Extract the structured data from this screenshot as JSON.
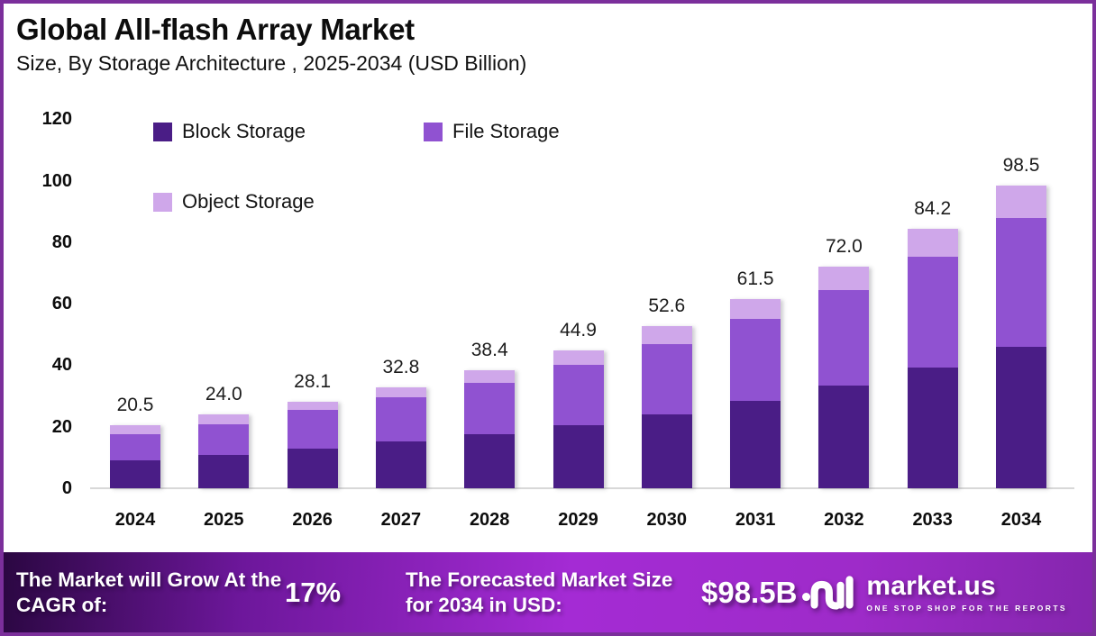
{
  "title": "Global All-flash Array Market",
  "subtitle": "Size, By Storage Architecture , 2025-2034 (USD Billion)",
  "chart_data": {
    "type": "bar",
    "stacked": true,
    "title": "Global All-flash Array Market Size, By Storage Architecture, 2025-2034 (USD Billion)",
    "categories": [
      "2024",
      "2025",
      "2026",
      "2027",
      "2028",
      "2029",
      "2030",
      "2031",
      "2032",
      "2033",
      "2034"
    ],
    "series": [
      {
        "name": "Block Storage",
        "color": "#4A1D86",
        "values": [
          9.1,
          10.8,
          13.0,
          15.1,
          17.7,
          20.5,
          24.0,
          28.4,
          33.4,
          39.2,
          46.0
        ]
      },
      {
        "name": "File Storage",
        "color": "#9052D1",
        "values": [
          8.5,
          10.0,
          12.4,
          14.5,
          16.5,
          19.7,
          22.8,
          26.7,
          31.0,
          36.0,
          42.0
        ]
      },
      {
        "name": "Object Storage",
        "color": "#CFA7EA",
        "values": [
          2.9,
          3.2,
          2.7,
          3.2,
          4.2,
          4.7,
          5.8,
          6.4,
          7.6,
          9.0,
          10.5
        ]
      }
    ],
    "totals": [
      20.5,
      24.0,
      28.1,
      32.8,
      38.4,
      44.9,
      52.6,
      61.5,
      72.0,
      84.2,
      98.5
    ],
    "total_labels": [
      "20.5",
      "24.0",
      "28.1",
      "32.8",
      "38.4",
      "44.9",
      "52.6",
      "61.5",
      "72.0",
      "84.2",
      "98.5"
    ],
    "ylim": [
      0,
      120
    ],
    "yticks": [
      0,
      20,
      40,
      60,
      80,
      100,
      120
    ],
    "grid": false,
    "legend_position": "top-left"
  },
  "legend": {
    "items": [
      {
        "label": "Block Storage",
        "color": "#4A1D86"
      },
      {
        "label": "File Storage",
        "color": "#9052D1"
      },
      {
        "label": "Object Storage",
        "color": "#CFA7EA"
      }
    ]
  },
  "banner": {
    "cagr_label": "The Market will Grow At the CAGR of:",
    "cagr_value": "17%",
    "forecast_label": "The Forecasted Market Size for 2034 in USD:",
    "forecast_value": "$98.5B",
    "logo_name": "market.us",
    "logo_tagline": "ONE STOP SHOP FOR THE REPORTS"
  },
  "colors": {
    "page_border": "#7B2F9B",
    "block_storage": "#4A1D86",
    "file_storage": "#9052D1",
    "object_storage": "#CFA7EA",
    "banner_gradient_start": "#2B0742",
    "banner_gradient_mid": "#A42BD4",
    "banner_gradient_end": "#8526AE",
    "axis_line": "#D8D8D8"
  }
}
